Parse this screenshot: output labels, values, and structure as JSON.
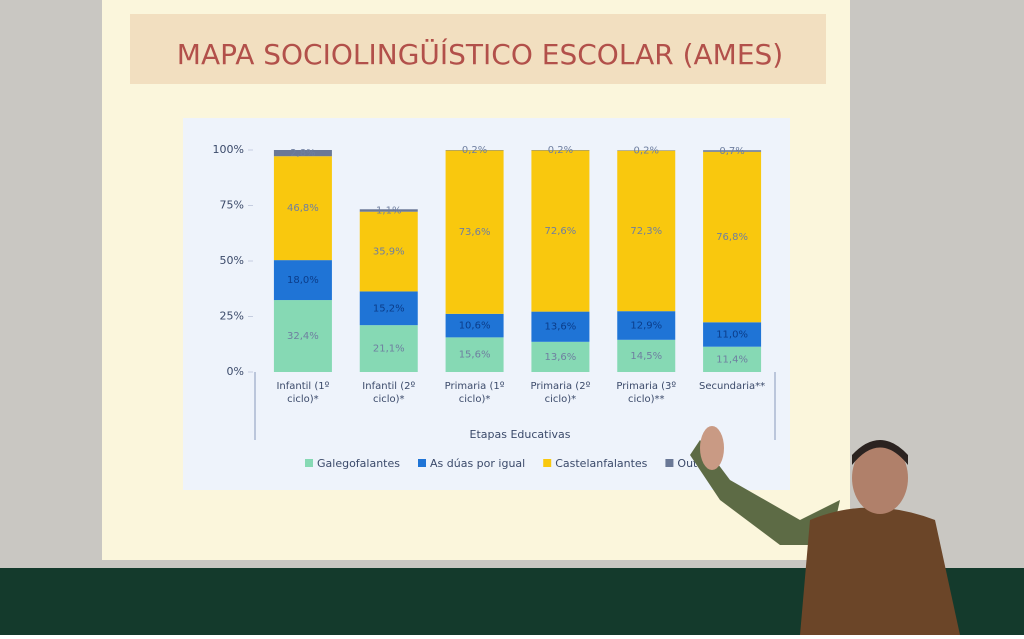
{
  "chart_data": {
    "type": "stacked-bar",
    "title": "MAPA SOCIOLINGÜÍSTICO ESCOLAR (AMES)",
    "x_label": "Etapas Educativas",
    "categories": [
      "Infantil (1º ciclo)*",
      "Infantil (2º ciclo)*",
      "Primaria (1º ciclo)*",
      "Primaria (2º ciclo)*",
      "Primaria (3º ciclo)**",
      "Secundaria**"
    ],
    "ylim": [
      0,
      100
    ],
    "yticks": [
      {
        "value": 0,
        "label": "0%"
      },
      {
        "value": 25,
        "label": "25%"
      },
      {
        "value": 50,
        "label": "50%"
      },
      {
        "value": 75,
        "label": "75%"
      },
      {
        "value": 100,
        "label": "100%"
      }
    ],
    "series": [
      {
        "name": "Galegofalantes",
        "color": "#86d9b4",
        "values": [
          32.4,
          21.1,
          15.6,
          13.6,
          14.5,
          11.4
        ],
        "value_labels": [
          "32,4%",
          "21,1%",
          "15,6%",
          "13,6%",
          "14,5%",
          "11,4%"
        ]
      },
      {
        "name": "As dúas por igual",
        "color": "#1f74d6",
        "values": [
          18.0,
          15.2,
          10.6,
          13.6,
          12.9,
          11.0
        ],
        "value_labels": [
          "18,0%",
          "15,2%",
          "10,6%",
          "13,6%",
          "12,9%",
          "11,0%"
        ]
      },
      {
        "name": "Castelanfalantes",
        "color": "#f9c80e",
        "values": [
          46.8,
          35.9,
          73.6,
          72.6,
          72.3,
          76.8
        ],
        "value_labels": [
          "46,8%",
          "35,9%",
          "73,6%",
          "72,6%",
          "72,3%",
          "76,8%"
        ]
      },
      {
        "name": "Outras",
        "color": "#6a7896",
        "values": [
          2.8,
          1.1,
          0.2,
          0.2,
          0.2,
          0.7
        ],
        "value_labels": [
          "2,8%",
          "1,1%",
          "0,2%",
          "0,2%",
          "0,2%",
          "0,7%"
        ]
      }
    ]
  }
}
